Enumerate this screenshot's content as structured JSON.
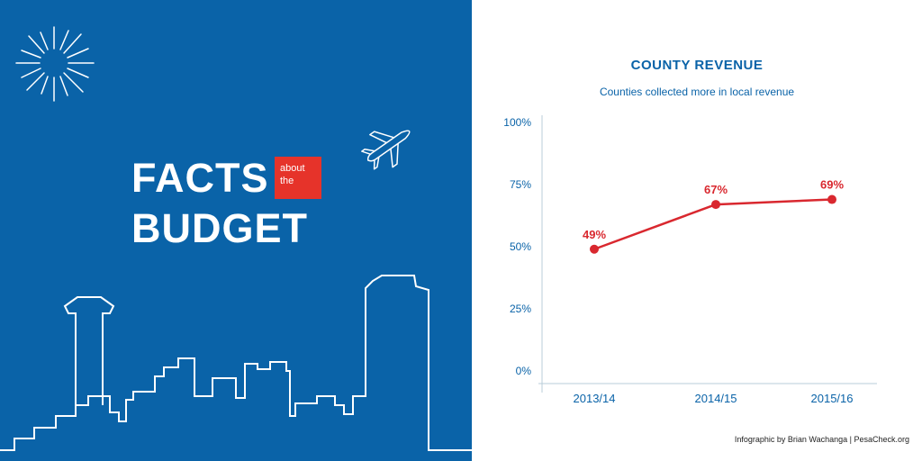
{
  "poster": {
    "facts": "FACTS",
    "about": "about",
    "the": "the",
    "budget": "BUDGET",
    "icons": [
      "sunburst-icon",
      "airplane-icon",
      "city-skyline"
    ]
  },
  "colors": {
    "panel_blue": "#0a63a8",
    "accent_red": "#e6332a",
    "line_red": "#d9282f",
    "axis": "#b9cdd8",
    "text_blue": "#0a63a8"
  },
  "chart_data": {
    "type": "line",
    "title": "COUNTY REVENUE",
    "subtitle": "Counties collected more in local revenue",
    "categories": [
      "2013/14",
      "2014/15",
      "2015/16"
    ],
    "series": [
      {
        "values": [
          49,
          67,
          69
        ],
        "labels": [
          "49%",
          "67%",
          "69%"
        ]
      }
    ],
    "y_ticks": [
      "0%",
      "25%",
      "50%",
      "75%",
      "100%"
    ],
    "ylim": [
      0,
      100
    ],
    "grid": false,
    "legend": "none"
  },
  "credit": "Infographic by Brian Wachanga | PesaCheck.org"
}
